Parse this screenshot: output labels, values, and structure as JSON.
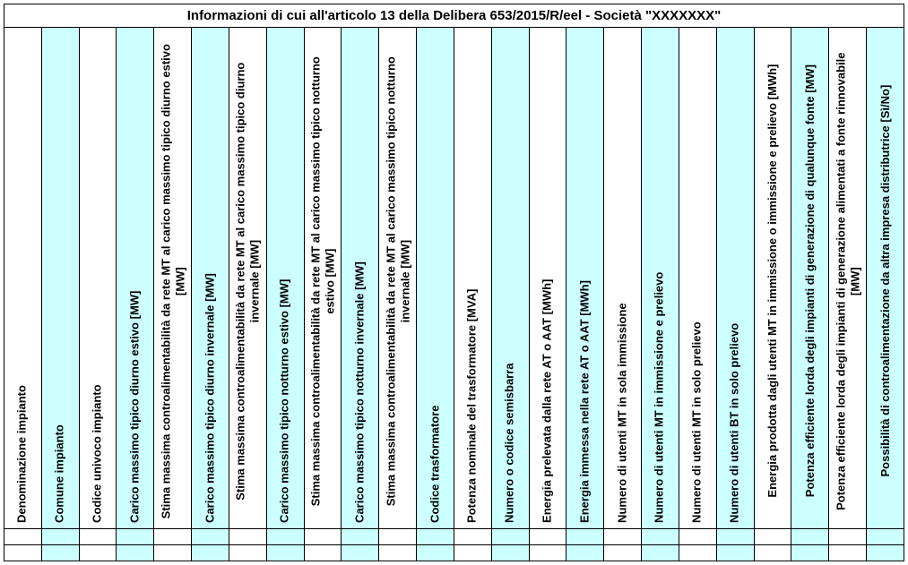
{
  "table": {
    "title": "Informazioni di cui all'articolo 13 della Delibera 653/2015/R/eel - Società \"XXXXXXX\"",
    "title_fontsize": 15,
    "header_fontsize": 13,
    "colors": {
      "cyan": "#ccffff",
      "white": "#ffffff",
      "border": "#000000",
      "text": "#000000"
    },
    "columns": [
      {
        "label": "Denominazione impianto",
        "bg": "white",
        "multi": false
      },
      {
        "label": "Comune impianto",
        "bg": "cyan",
        "multi": false
      },
      {
        "label": "Codice univoco impianto",
        "bg": "white",
        "multi": false
      },
      {
        "label": "Carico massimo tipico diurno estivo [MW]",
        "bg": "cyan",
        "multi": false
      },
      {
        "label": "Stima massima controalimentabilità da rete MT al carico massimo tipico diurno estivo [MW]",
        "bg": "white",
        "multi": true
      },
      {
        "label": "Carico massimo tipico diurno invernale [MW]",
        "bg": "cyan",
        "multi": false
      },
      {
        "label": "Stima massima controalimentabilità da rete MT al carico massimo tipico diurno invernale [MW]",
        "bg": "white",
        "multi": true
      },
      {
        "label": "Carico massimo tipico notturno estivo [MW]",
        "bg": "cyan",
        "multi": false
      },
      {
        "label": "Stima massima controalimentabilità da rete MT al carico massimo tipico notturno estivo [MW]",
        "bg": "white",
        "multi": true
      },
      {
        "label": "Carico massimo tipico notturno invernale [MW]",
        "bg": "cyan",
        "multi": false
      },
      {
        "label": "Stima massima controalimentabilità da rete MT al carico massimo tipico notturno invernale [MW]",
        "bg": "white",
        "multi": true
      },
      {
        "label": "Codice trasformatore",
        "bg": "cyan",
        "multi": false
      },
      {
        "label": "Potenza nominale del trasformatore [MVA]",
        "bg": "white",
        "multi": false
      },
      {
        "label": "Numero o codice semisbarra",
        "bg": "cyan",
        "multi": false
      },
      {
        "label": "Energia prelevata dalla rete AT o AAT [MWh]",
        "bg": "white",
        "multi": false
      },
      {
        "label": "Energia immessa nella rete AT o AAT [MWh]",
        "bg": "cyan",
        "multi": false
      },
      {
        "label": "Numero di utenti MT in sola immissione",
        "bg": "white",
        "multi": false
      },
      {
        "label": "Numero di utenti MT in immissione e prelievo",
        "bg": "cyan",
        "multi": false
      },
      {
        "label": "Numero di utenti MT in solo prelievo",
        "bg": "white",
        "multi": false
      },
      {
        "label": "Numero di utenti BT in solo prelievo",
        "bg": "cyan",
        "multi": false
      },
      {
        "label": "Energia prodotta dagli utenti MT in immissione o immissione e prelievo [MWh]",
        "bg": "white",
        "multi": true
      },
      {
        "label": "Potenza efficiente lorda degli impianti di generazione di qualunque fonte [MW]",
        "bg": "cyan",
        "multi": true
      },
      {
        "label": "Potenza efficiente lorda degli impianti di generazione alimentati a fonte rinnovabile [MW]",
        "bg": "white",
        "multi": true
      },
      {
        "label": "Possibilità di controalimentazione da altra impresa distributrice [Sì/No]",
        "bg": "cyan",
        "multi": true
      }
    ],
    "data_rows": 2
  }
}
